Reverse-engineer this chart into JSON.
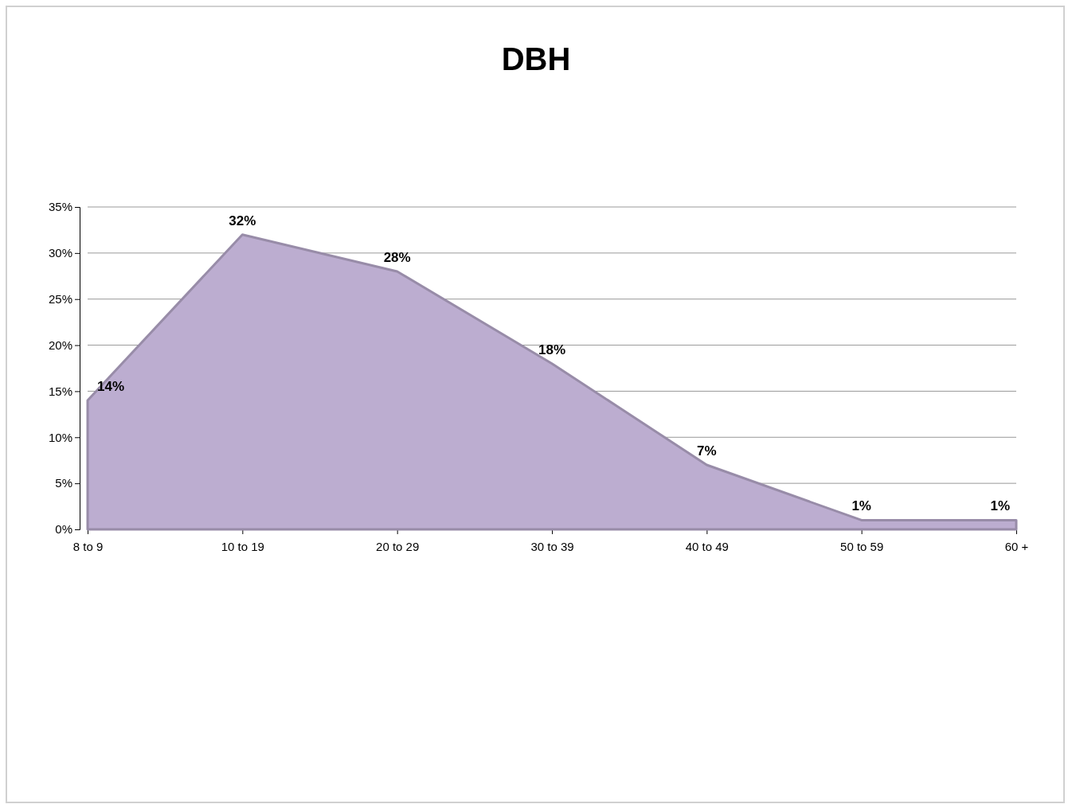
{
  "chart_data": {
    "type": "area",
    "title": "DBH",
    "categories": [
      "8 to 9",
      "10 to 19",
      "20 to 29",
      "30 to 39",
      "40 to 49",
      "50 to 59",
      "60 +"
    ],
    "values": [
      14,
      32,
      28,
      18,
      7,
      1,
      1
    ],
    "value_labels": [
      "14%",
      "32%",
      "28%",
      "18%",
      "7%",
      "1%",
      "1%"
    ],
    "color": "#bcadd0",
    "ylim": [
      0,
      35
    ],
    "yticks": [
      {
        "value": 0,
        "label": "0%"
      },
      {
        "value": 5,
        "label": "5%"
      },
      {
        "value": 10,
        "label": "10%"
      },
      {
        "value": 15,
        "label": "15%"
      },
      {
        "value": 20,
        "label": "20%"
      },
      {
        "value": 25,
        "label": "25%"
      },
      {
        "value": 30,
        "label": "30%"
      },
      {
        "value": 35,
        "label": "35%"
      }
    ],
    "grid": "y"
  }
}
